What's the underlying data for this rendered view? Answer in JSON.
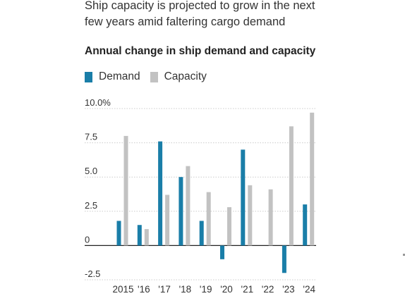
{
  "headline": "Ship capacity is projected to grow in the next few years amid faltering cargo demand",
  "chart_data": {
    "type": "bar",
    "title": "Annual change in ship demand and capacity",
    "categories": [
      "2015",
      "'16",
      "'17",
      "'18",
      "'19",
      "'20",
      "'21",
      "'22",
      "'23",
      "'24"
    ],
    "series": [
      {
        "name": "Demand",
        "color": "#1a7ea8",
        "values": [
          1.8,
          1.5,
          7.6,
          5.0,
          1.8,
          -1.0,
          7.0,
          null,
          -2.0,
          3.0
        ]
      },
      {
        "name": "Capacity",
        "color": "#c2c2c2",
        "values": [
          8.0,
          1.2,
          3.7,
          5.8,
          3.9,
          2.8,
          4.4,
          4.1,
          8.7,
          9.7
        ]
      }
    ],
    "y_ticks": [
      "10.0%",
      "7.5",
      "5.0",
      "2.5",
      "0",
      "-2.5"
    ],
    "y_tick_values": [
      10,
      7.5,
      5,
      2.5,
      0,
      -2.5
    ],
    "ylim": [
      -2.5,
      10
    ],
    "xlabel": "",
    "ylabel": "",
    "grid": true,
    "legend_position": "top-left"
  }
}
